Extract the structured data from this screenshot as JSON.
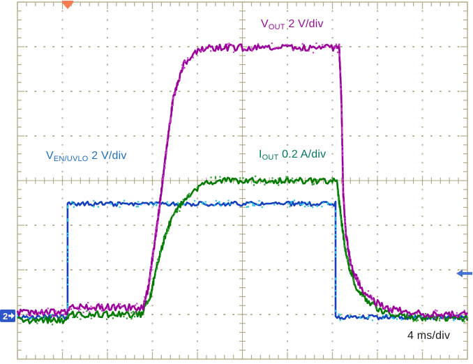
{
  "colors": {
    "background": "#ffffff",
    "graticule": "#b3ab86",
    "trigger_marker": "#f87d4e",
    "channel_badge_bg": "#2d56c8",
    "channel_badge_fg": "#ffffff",
    "right_arrow": "#4472d6",
    "label_vout": "#9a0d9a",
    "label_ven": "#1e6fc5",
    "label_iout": "#00795f",
    "label_time": "#1a1a1a"
  },
  "labels": {
    "v_out": {
      "pre": "V",
      "sub": "OUT",
      "post": " 2 V/div"
    },
    "v_en": {
      "pre": "V",
      "sub": "EN/UVLO",
      "post": " 2 V/div"
    },
    "i_out": {
      "pre": "I",
      "sub": "OUT",
      "post": " 0.2 A/div"
    },
    "timebase": "4 ms/div"
  },
  "markers": {
    "trigger_x_div": 1.116,
    "channel_badge_label": "2",
    "channel_badge_y_div": 7.03,
    "right_arrow_y_div": 6.08
  },
  "chart_data": {
    "type": "line",
    "x_axis": {
      "per_div": "4 ms/div",
      "divisions": 10
    },
    "y_axis": {
      "divisions": 8
    },
    "grid": "oscilloscope graticule, dotted division lines, center cross-hair axes with 0.2-div ticks",
    "legend_position": "on-plot text labels",
    "series": [
      {
        "name": "V_EN/UVLO",
        "scale": "2 V/div",
        "color": "#1440bf",
        "speckle": "#25c5e8",
        "noise_div": 0.05,
        "points_div": [
          [
            0,
            7.06
          ],
          [
            1.115,
            7.06
          ],
          [
            1.115,
            4.52
          ],
          [
            7.07,
            4.52
          ],
          [
            7.07,
            7.06
          ],
          [
            10,
            7.06
          ]
        ]
      },
      {
        "name": "I_OUT",
        "scale": "0.2 A/div",
        "color": "#007a00",
        "speckle": "#2f9e2f",
        "noise_div": 0.07,
        "points_div": [
          [
            0,
            7.13
          ],
          [
            1.115,
            7.13
          ],
          [
            1.16,
            7.0
          ],
          [
            2.74,
            7.0
          ],
          [
            2.95,
            6.62
          ],
          [
            3.1,
            5.9
          ],
          [
            3.26,
            5.31
          ],
          [
            3.41,
            4.88
          ],
          [
            3.64,
            4.53
          ],
          [
            3.88,
            4.25
          ],
          [
            4.14,
            4.06
          ],
          [
            4.4,
            4.0
          ],
          [
            7.1,
            4.0
          ],
          [
            7.14,
            4.4
          ],
          [
            7.26,
            5.38
          ],
          [
            7.36,
            5.89
          ],
          [
            7.52,
            6.36
          ],
          [
            7.78,
            6.72
          ],
          [
            8.14,
            6.94
          ],
          [
            8.56,
            7.03
          ],
          [
            9.0,
            7.08
          ],
          [
            10,
            7.08
          ]
        ]
      },
      {
        "name": "V_OUT",
        "scale": "2 V/div",
        "color": "#9b009b",
        "speckle": "#c23ec2",
        "noise_div": 0.075,
        "points_div": [
          [
            0,
            6.95
          ],
          [
            1.115,
            6.95
          ],
          [
            1.16,
            6.84
          ],
          [
            2.79,
            6.84
          ],
          [
            2.91,
            6.4
          ],
          [
            3.02,
            5.6
          ],
          [
            3.13,
            4.8
          ],
          [
            3.3,
            3.4
          ],
          [
            3.46,
            2.15
          ],
          [
            3.69,
            1.4
          ],
          [
            3.95,
            1.12
          ],
          [
            4.26,
            1.02
          ],
          [
            7.15,
            1.02
          ],
          [
            7.2,
            2.2
          ],
          [
            7.24,
            4.3
          ],
          [
            7.3,
            5.2
          ],
          [
            7.41,
            5.9
          ],
          [
            7.63,
            6.4
          ],
          [
            7.94,
            6.72
          ],
          [
            8.29,
            6.88
          ],
          [
            8.81,
            6.96
          ],
          [
            9.22,
            7.0
          ],
          [
            10,
            7.0
          ]
        ]
      }
    ]
  }
}
